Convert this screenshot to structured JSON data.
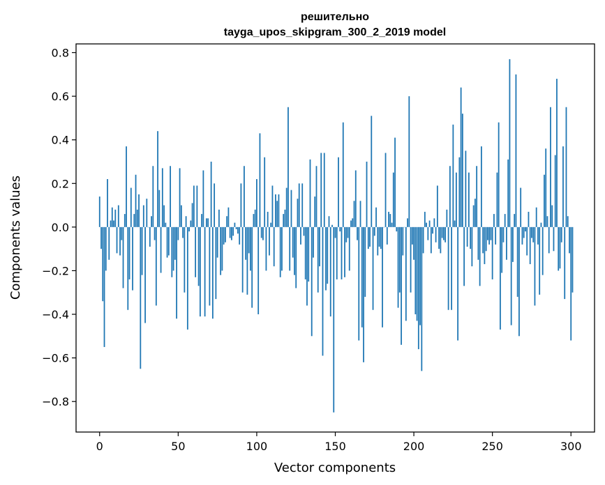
{
  "chart_data": {
    "type": "bar",
    "title_line1": "решительно",
    "title_line2": "tayga_upos_skipgram_300_2_2019 model",
    "xlabel": "Vector components",
    "ylabel": "Components values",
    "xlim": [
      -15,
      315
    ],
    "ylim": [
      -0.94,
      0.84
    ],
    "xticks": [
      0,
      50,
      100,
      150,
      200,
      250,
      300
    ],
    "xtick_labels": [
      "0",
      "50",
      "100",
      "150",
      "200",
      "250",
      "300"
    ],
    "yticks": [
      -0.8,
      -0.6,
      -0.4,
      -0.2,
      0.0,
      0.2,
      0.4,
      0.6,
      0.8
    ],
    "ytick_labels": [
      "−0.8",
      "−0.6",
      "−0.4",
      "−0.2",
      "0.0",
      "0.2",
      "0.4",
      "0.6",
      "0.8"
    ],
    "bar_color": "#1f77b4",
    "grid": false,
    "values": [
      0.14,
      -0.1,
      -0.34,
      -0.55,
      -0.2,
      0.22,
      -0.15,
      0.03,
      0.09,
      0.03,
      0.08,
      -0.12,
      0.1,
      -0.13,
      -0.06,
      -0.28,
      0.06,
      0.37,
      -0.38,
      -0.24,
      0.18,
      -0.29,
      0.06,
      0.24,
      0.08,
      0.15,
      -0.65,
      -0.22,
      0.1,
      -0.44,
      0.13,
      0.0,
      -0.09,
      0.05,
      0.28,
      -0.06,
      -0.36,
      0.44,
      0.17,
      -0.21,
      0.27,
      0.1,
      0.02,
      -0.14,
      -0.13,
      0.28,
      -0.23,
      -0.2,
      -0.15,
      -0.42,
      -0.06,
      0.27,
      0.1,
      -0.05,
      -0.3,
      0.05,
      -0.47,
      -0.02,
      0.03,
      0.11,
      0.19,
      -0.23,
      0.19,
      -0.27,
      -0.41,
      0.06,
      0.26,
      -0.41,
      0.04,
      0.04,
      -0.36,
      0.3,
      -0.42,
      0.2,
      -0.33,
      -0.14,
      0.08,
      -0.22,
      -0.2,
      -0.08,
      -0.07,
      0.05,
      0.09,
      -0.05,
      -0.06,
      -0.04,
      0.02,
      -0.01,
      -0.03,
      -0.08,
      0.2,
      -0.3,
      0.28,
      -0.15,
      -0.31,
      -0.12,
      -0.2,
      -0.37,
      0.06,
      0.08,
      0.22,
      -0.4,
      0.43,
      -0.05,
      -0.06,
      0.32,
      -0.2,
      0.07,
      -0.13,
      0.02,
      0.19,
      -0.18,
      0.15,
      0.12,
      0.15,
      -0.23,
      -0.2,
      0.06,
      0.08,
      0.18,
      0.55,
      -0.2,
      0.17,
      -0.14,
      -0.22,
      -0.28,
      0.13,
      0.2,
      -0.08,
      0.2,
      -0.04,
      -0.24,
      -0.36,
      -0.25,
      0.31,
      -0.5,
      -0.14,
      0.14,
      0.28,
      -0.3,
      -0.18,
      0.34,
      -0.59,
      0.34,
      -0.29,
      -0.26,
      0.05,
      -0.41,
      0.01,
      -0.85,
      -0.05,
      -0.24,
      0.32,
      -0.02,
      -0.24,
      0.48,
      -0.23,
      -0.07,
      -0.05,
      -0.2,
      0.03,
      0.04,
      0.12,
      0.26,
      -0.06,
      -0.52,
      0.12,
      -0.46,
      -0.62,
      -0.32,
      0.3,
      -0.1,
      -0.09,
      0.51,
      -0.38,
      -0.04,
      0.09,
      -0.13,
      -0.09,
      -0.1,
      -0.46,
      0.0,
      0.34,
      -0.08,
      0.07,
      0.06,
      0.02,
      0.25,
      0.41,
      -0.02,
      -0.37,
      -0.3,
      -0.54,
      -0.13,
      0.0,
      -0.43,
      0.04,
      0.6,
      -0.3,
      -0.08,
      -0.15,
      -0.4,
      -0.43,
      -0.56,
      -0.45,
      -0.66,
      -0.12,
      0.07,
      0.02,
      -0.06,
      0.03,
      -0.12,
      -0.03,
      0.04,
      -0.07,
      0.19,
      -0.1,
      -0.12,
      -0.05,
      -0.06,
      -0.07,
      0.08,
      -0.38,
      0.28,
      -0.38,
      0.47,
      0.03,
      0.25,
      -0.52,
      0.32,
      0.64,
      0.52,
      -0.27,
      0.35,
      -0.09,
      0.25,
      -0.1,
      -0.18,
      0.1,
      0.13,
      0.28,
      -0.15,
      -0.27,
      0.37,
      -0.12,
      -0.17,
      -0.11,
      -0.06,
      -0.08,
      -0.06,
      -0.24,
      0.06,
      -0.08,
      0.25,
      0.48,
      -0.47,
      -0.21,
      -0.07,
      0.06,
      -0.15,
      0.31,
      0.77,
      -0.45,
      -0.16,
      0.06,
      0.7,
      -0.32,
      -0.5,
      0.18,
      -0.08,
      -0.05,
      -0.02,
      -0.13,
      0.07,
      -0.17,
      -0.05,
      -0.07,
      -0.36,
      0.09,
      -0.08,
      -0.31,
      0.02,
      -0.22,
      0.24,
      0.36,
      0.05,
      -0.12,
      0.55,
      0.1,
      -0.11,
      0.33,
      0.68,
      -0.2,
      -0.19,
      -0.07,
      0.37,
      -0.33,
      0.55,
      0.05,
      -0.12,
      -0.52,
      -0.3
    ]
  }
}
